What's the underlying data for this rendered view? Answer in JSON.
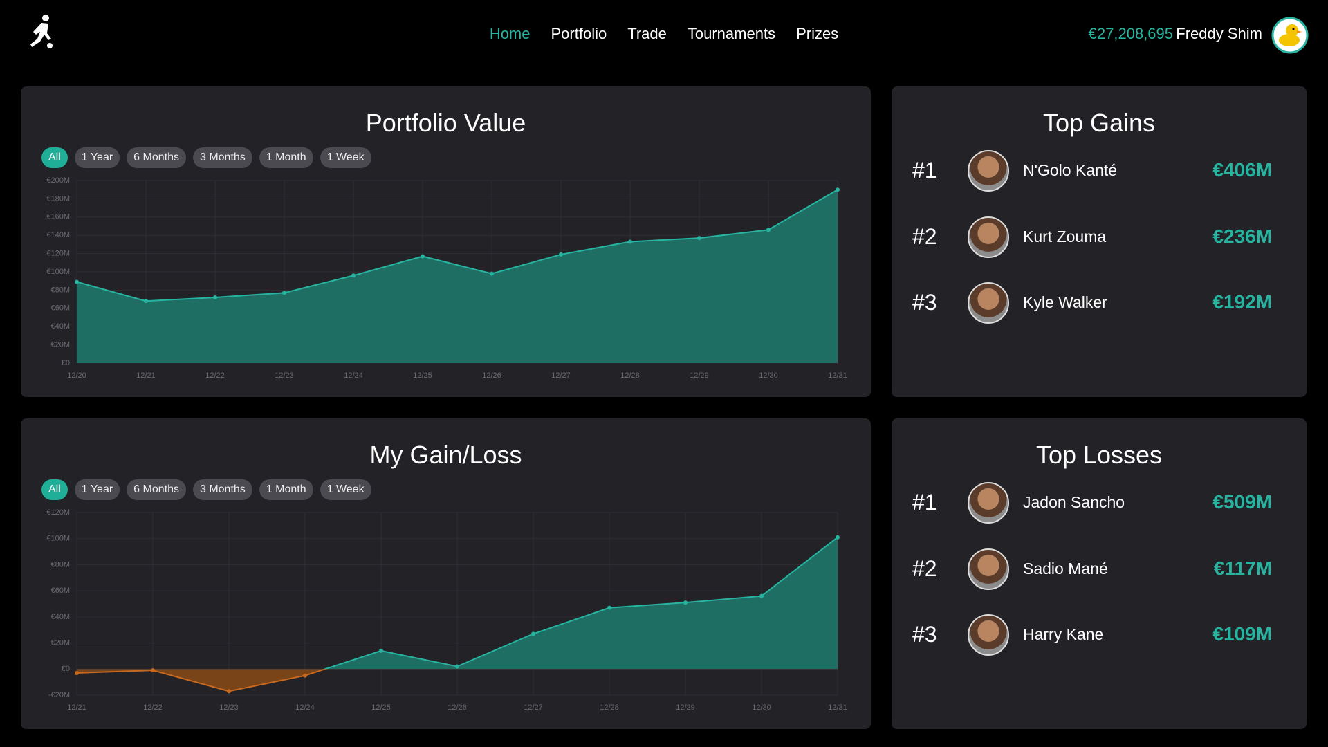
{
  "header": {
    "nav": [
      "Home",
      "Portfolio",
      "Trade",
      "Tournaments",
      "Prizes"
    ],
    "balance": "€27,208,695",
    "user": "Freddy Shim"
  },
  "chart_data": [
    {
      "type": "area",
      "title": "Portfolio Value",
      "filters": [
        "All",
        "1 Year",
        "6 Months",
        "3 Months",
        "1 Month",
        "1 Week"
      ],
      "categories": [
        "12/20",
        "12/21",
        "12/22",
        "12/23",
        "12/24",
        "12/25",
        "12/26",
        "12/27",
        "12/28",
        "12/29",
        "12/30",
        "12/31"
      ],
      "values": [
        89,
        68,
        72,
        77,
        96,
        117,
        98,
        119,
        133,
        137,
        146,
        190
      ],
      "color": "#27b5a1",
      "fill": "#1f6e64",
      "ylim": [
        0,
        200
      ],
      "yticks": [
        {
          "value": 0,
          "label": "€0"
        },
        {
          "value": 20,
          "label": "€20M"
        },
        {
          "value": 40,
          "label": "€40M"
        },
        {
          "value": 60,
          "label": "€60M"
        },
        {
          "value": 80,
          "label": "€80M"
        },
        {
          "value": 100,
          "label": "€100M"
        },
        {
          "value": 120,
          "label": "€120M"
        },
        {
          "value": 140,
          "label": "€140M"
        },
        {
          "value": 160,
          "label": "€160M"
        },
        {
          "value": 180,
          "label": "€180M"
        },
        {
          "value": 200,
          "label": "€200M"
        }
      ],
      "grid": true
    },
    {
      "type": "area",
      "title": "My Gain/Loss",
      "filters": [
        "All",
        "1 Year",
        "6 Months",
        "3 Months",
        "1 Month",
        "1 Week"
      ],
      "categories": [
        "12/21",
        "12/22",
        "12/23",
        "12/24",
        "12/25",
        "12/26",
        "12/27",
        "12/28",
        "12/29",
        "12/30",
        "12/31"
      ],
      "values": [
        -3,
        -1,
        -17,
        -5,
        14,
        2,
        27,
        47,
        51,
        56,
        101
      ],
      "color": "#27b5a1",
      "fill": "#1f6e64",
      "negative_color": "#c8691f",
      "negative_fill": "#7a4419",
      "ylim": [
        -20,
        120
      ],
      "yticks": [
        {
          "value": -20,
          "label": "-€20M"
        },
        {
          "value": 0,
          "label": "€0"
        },
        {
          "value": 20,
          "label": "€20M"
        },
        {
          "value": 40,
          "label": "€40M"
        },
        {
          "value": 60,
          "label": "€60M"
        },
        {
          "value": 80,
          "label": "€80M"
        },
        {
          "value": 100,
          "label": "€100M"
        },
        {
          "value": 120,
          "label": "€120M"
        }
      ],
      "grid": true
    }
  ],
  "top_gains": {
    "title": "Top Gains",
    "rows": [
      {
        "rank": "#1",
        "name": "N'Golo Kanté",
        "value": "€406M"
      },
      {
        "rank": "#2",
        "name": "Kurt Zouma",
        "value": "€236M"
      },
      {
        "rank": "#3",
        "name": "Kyle Walker",
        "value": "€192M"
      }
    ]
  },
  "top_losses": {
    "title": "Top Losses",
    "rows": [
      {
        "rank": "#1",
        "name": "Jadon Sancho",
        "value": "€509M"
      },
      {
        "rank": "#2",
        "name": "Sadio Mané",
        "value": "€117M"
      },
      {
        "rank": "#3",
        "name": "Harry Kane",
        "value": "€109M"
      }
    ]
  }
}
